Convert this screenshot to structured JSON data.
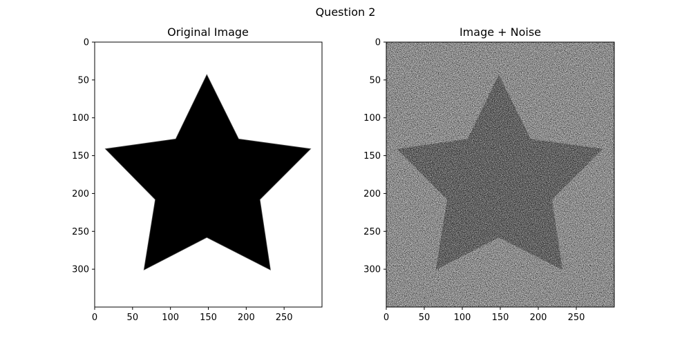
{
  "figure": {
    "suptitle": "Question 2"
  },
  "chart_data": [
    {
      "type": "image",
      "title": "Original Image",
      "image_content": "black five-pointed star on white background",
      "background_color": "#ffffff",
      "shape_color": "#000000",
      "noise": false,
      "image_shape": [
        350,
        300
      ],
      "xlim": [
        0,
        300
      ],
      "ylim": [
        350,
        0
      ],
      "xticks": [
        0,
        50,
        100,
        150,
        200,
        250
      ],
      "yticks": [
        0,
        50,
        100,
        150,
        200,
        250,
        300
      ],
      "star_vertices": [
        [
          148,
          43
        ],
        [
          190,
          128
        ],
        [
          285,
          141
        ],
        [
          218,
          208
        ],
        [
          232,
          301
        ],
        [
          148,
          258
        ],
        [
          65,
          301
        ],
        [
          80,
          208
        ],
        [
          14,
          141
        ],
        [
          107,
          128
        ]
      ]
    },
    {
      "type": "image",
      "title": "Image + Noise",
      "image_content": "dark grey star on light grey background with random noise",
      "background_color": "#b4b4b4",
      "shape_color": "#505050",
      "noise": true,
      "image_shape": [
        350,
        300
      ],
      "xlim": [
        0,
        300
      ],
      "ylim": [
        350,
        0
      ],
      "xticks": [
        0,
        50,
        100,
        150,
        200,
        250
      ],
      "yticks": [
        0,
        50,
        100,
        150,
        200,
        250,
        300
      ],
      "star_vertices": [
        [
          148,
          43
        ],
        [
          190,
          128
        ],
        [
          285,
          141
        ],
        [
          218,
          208
        ],
        [
          232,
          301
        ],
        [
          148,
          258
        ],
        [
          65,
          301
        ],
        [
          80,
          208
        ],
        [
          14,
          141
        ],
        [
          107,
          128
        ]
      ]
    }
  ]
}
